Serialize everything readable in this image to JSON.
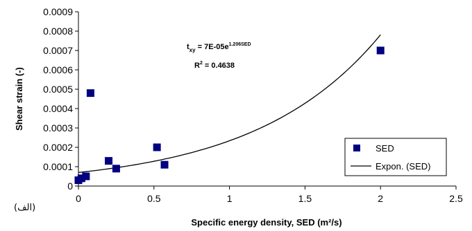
{
  "chart_data": {
    "type": "scatter",
    "xlabel": "Specific energy density, SED (m²/s)",
    "ylabel": "Shear strain (-)",
    "xlim": [
      0,
      2.5
    ],
    "ylim": [
      0,
      0.0009
    ],
    "x_ticks": [
      "0",
      "0.5",
      "1",
      "1.5",
      "2",
      "2.5"
    ],
    "y_ticks": [
      "0",
      "0.0001",
      "0.0002",
      "0.0003",
      "0.0004",
      "0.0005",
      "0.0006",
      "0.0007",
      "0.0008",
      "0.0009"
    ],
    "grid": false,
    "legend_position": "bottom-right",
    "series": [
      {
        "name": "SED",
        "marker": "square",
        "color": "#000080",
        "points": [
          {
            "x": 0.0,
            "y": 3e-05
          },
          {
            "x": 0.02,
            "y": 4e-05
          },
          {
            "x": 0.05,
            "y": 5e-05
          },
          {
            "x": 0.08,
            "y": 0.00048
          },
          {
            "x": 0.2,
            "y": 0.00013
          },
          {
            "x": 0.25,
            "y": 9e-05
          },
          {
            "x": 0.52,
            "y": 0.0002
          },
          {
            "x": 0.57,
            "y": 0.00011
          },
          {
            "x": 2.0,
            "y": 0.0007
          }
        ]
      },
      {
        "name": "Expon. (SED)",
        "type": "trendline",
        "color": "#000000",
        "x_range": [
          0,
          2.0
        ],
        "equation": {
          "a": 7e-05,
          "b": 1.206
        }
      }
    ],
    "annotations": {
      "eq_prefix": "t",
      "eq_sub": "xy",
      "eq_main": " = 7E-05e",
      "eq_sup": "1.206SED",
      "r2_label": "R",
      "r2_sup": "2",
      "r2_value": " = 0.4638"
    }
  },
  "corner_label": "(الف)"
}
